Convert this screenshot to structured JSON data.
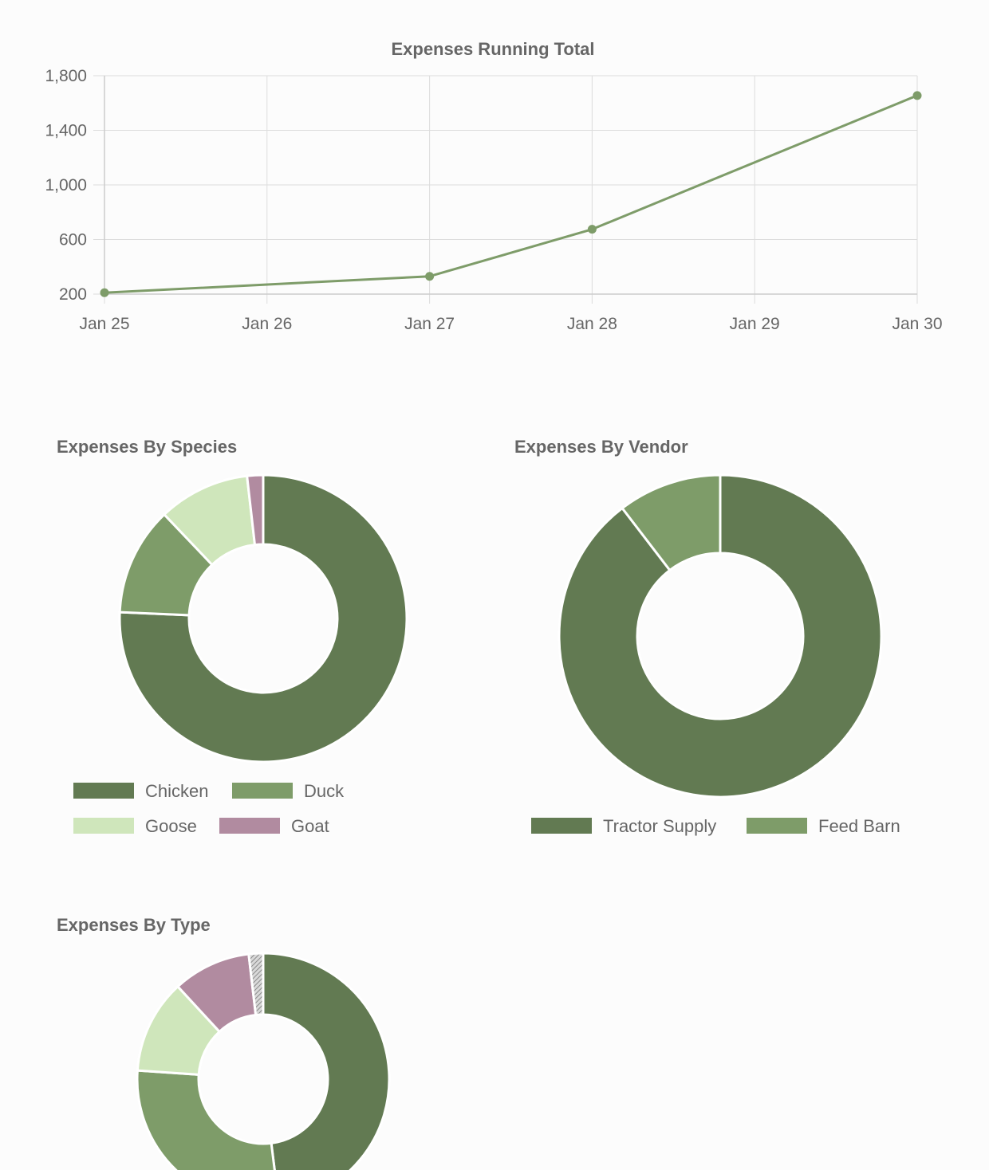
{
  "colors": {
    "dark_green": "#627a52",
    "mid_green": "#7e9c69",
    "light_green": "#cfe6bb",
    "mauve": "#b18ba0",
    "hatch_gray": "#9a9a9a",
    "grid": "#dddddd",
    "text": "#666666",
    "background": "#fcfcfc"
  },
  "chart_data": [
    {
      "type": "line",
      "title": "Expenses Running Total",
      "categories": [
        "Jan 25",
        "Jan 26",
        "Jan 27",
        "Jan 28",
        "Jan 29",
        "Jan 30"
      ],
      "ytick_labels": [
        "1,800",
        "1,400",
        "1,000",
        "600",
        "200"
      ],
      "yticks": [
        1800,
        1400,
        1000,
        600,
        200
      ],
      "ylim": [
        200,
        1800
      ],
      "grid": true,
      "legend": "none",
      "series": [
        {
          "color": "#7e9c69",
          "points": [
            {
              "x": "Jan 25",
              "y": 210
            },
            {
              "x": "Jan 27",
              "y": 330
            },
            {
              "x": "Jan 28",
              "y": 675
            },
            {
              "x": "Jan 30",
              "y": 1655
            }
          ]
        }
      ]
    },
    {
      "type": "pie",
      "variant": "doughnut",
      "title": "Expenses By Species",
      "legend": "bottom",
      "slices": [
        {
          "label": "Chicken",
          "value": 75.7,
          "color": "#627a52"
        },
        {
          "label": "Duck",
          "value": 12.2,
          "color": "#7e9c69"
        },
        {
          "label": "Goose",
          "value": 10.3,
          "color": "#cfe6bb"
        },
        {
          "label": "Goat",
          "value": 1.8,
          "color": "#b18ba0"
        }
      ]
    },
    {
      "type": "pie",
      "variant": "doughnut",
      "title": "Expenses By Vendor",
      "legend": "bottom",
      "slices": [
        {
          "label": "Tractor Supply",
          "value": 89.6,
          "color": "#627a52"
        },
        {
          "label": "Feed Barn",
          "value": 10.4,
          "color": "#7e9c69"
        }
      ]
    },
    {
      "type": "pie",
      "variant": "doughnut",
      "title": "Expenses By Type",
      "legend": "none",
      "slices": [
        {
          "value": 47.0,
          "color": "#627a52"
        },
        {
          "value": 27.5,
          "color": "#7e9c69"
        },
        {
          "value": 11.8,
          "color": "#cfe6bb"
        },
        {
          "value": 9.8,
          "color": "#b18ba0"
        },
        {
          "value": 1.8,
          "color": "#9a9a9a",
          "pattern": "hatched"
        }
      ]
    }
  ]
}
